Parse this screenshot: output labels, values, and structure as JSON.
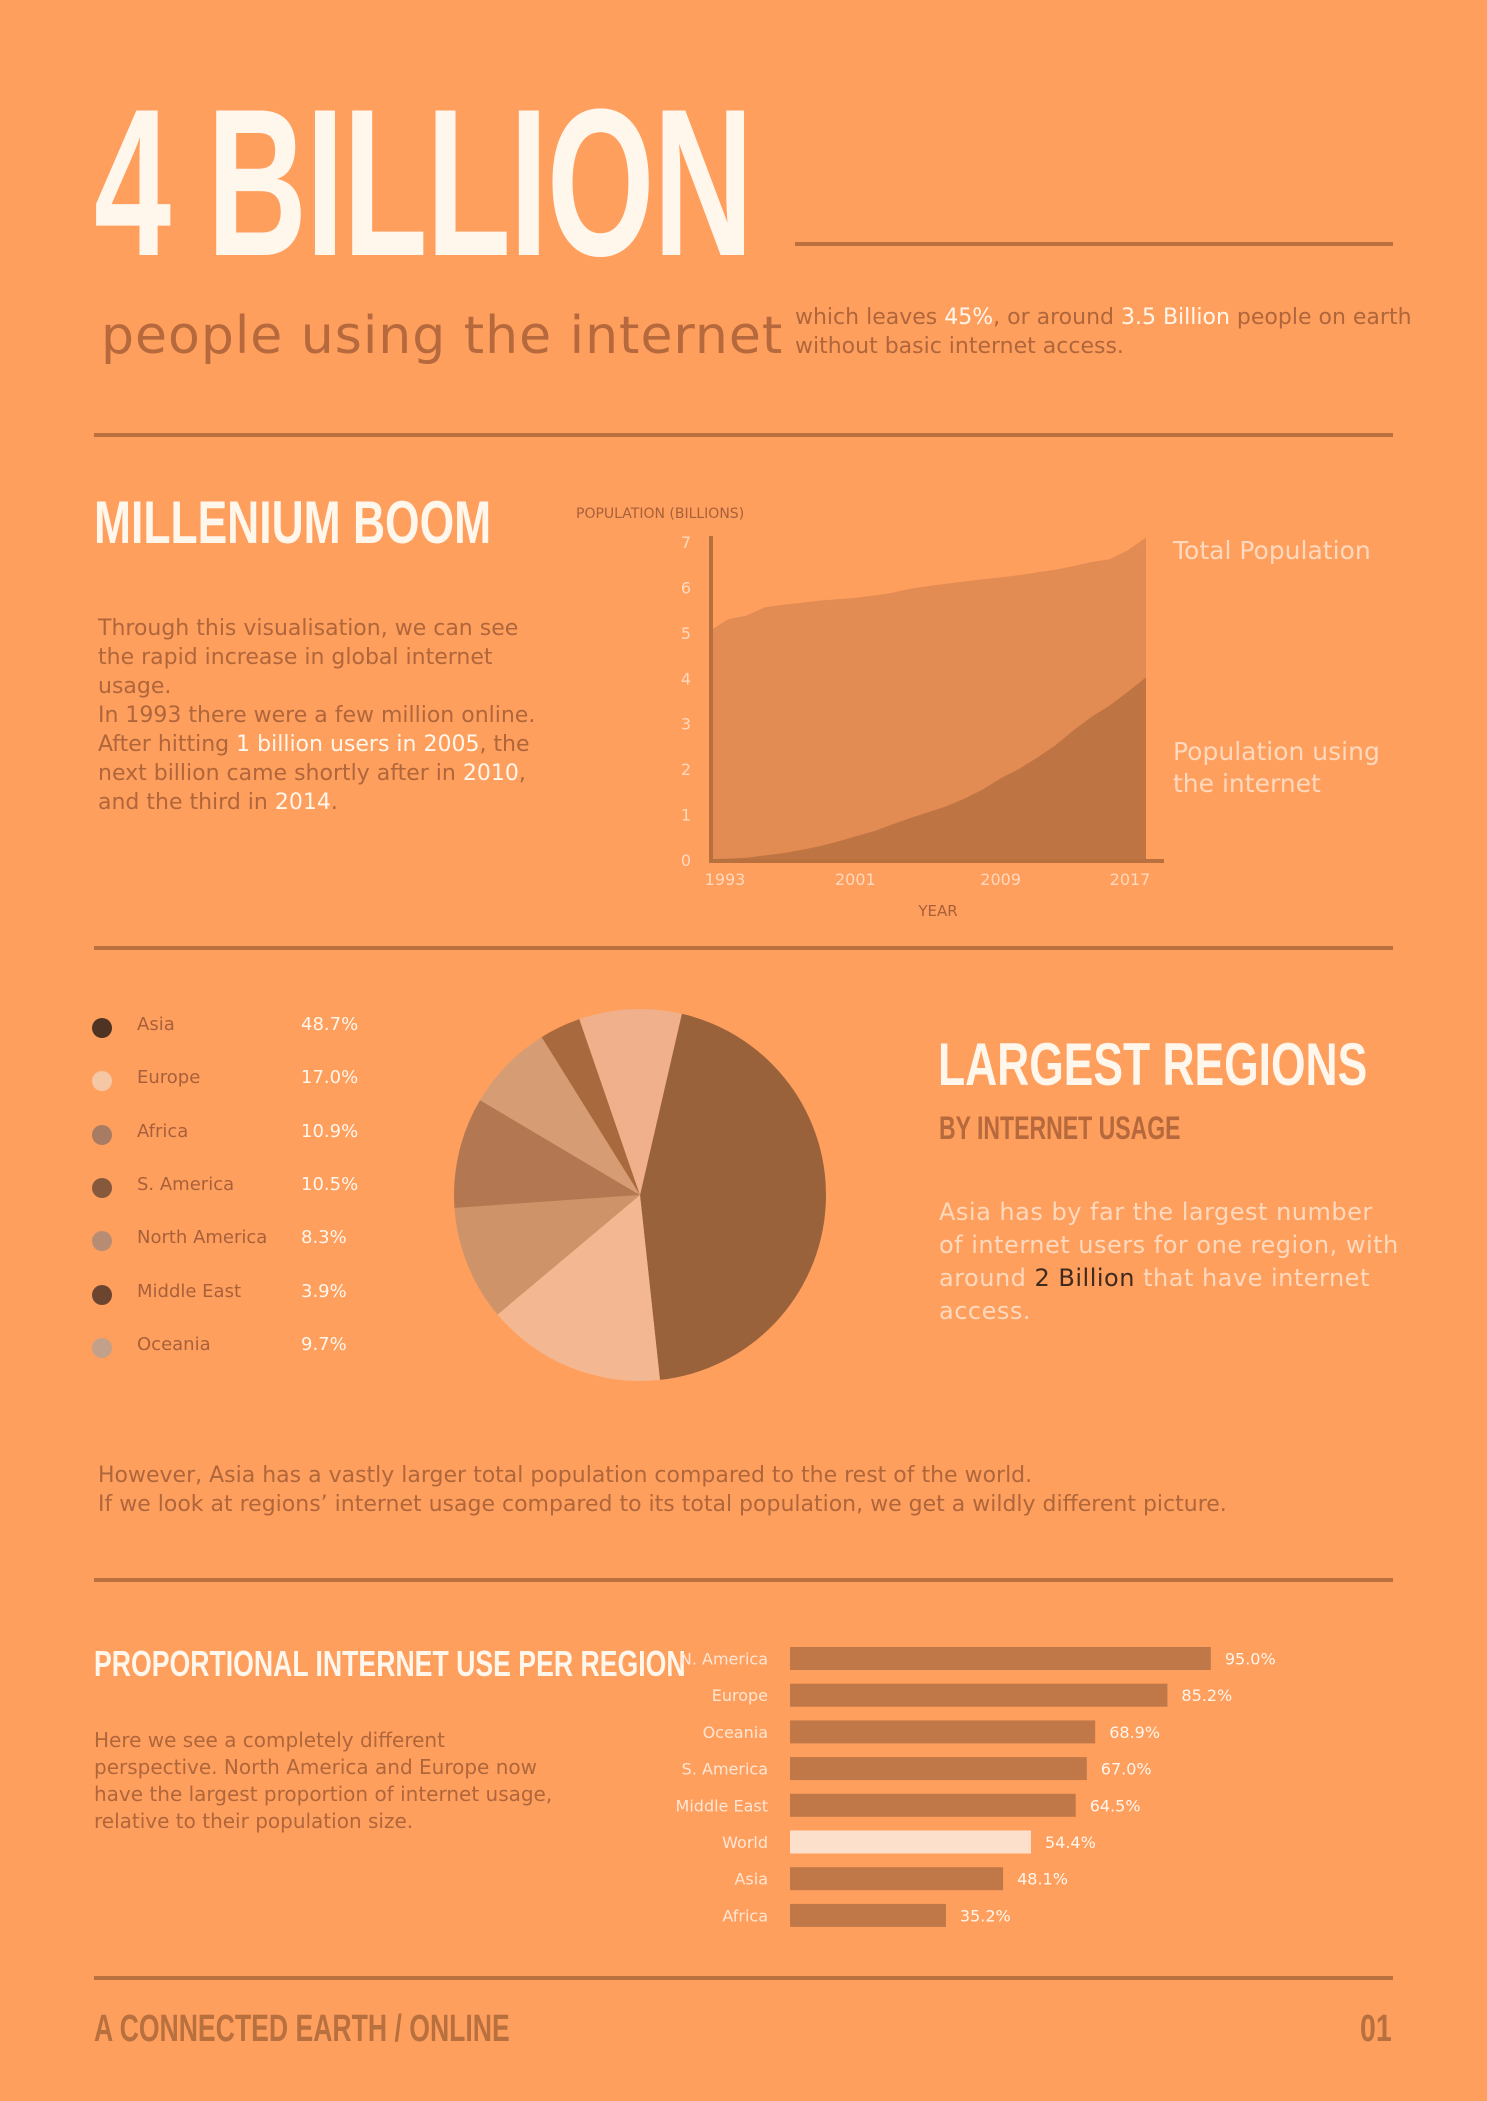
{
  "header": {
    "big_number": "4 BILLION",
    "subtitle": "people using the internet",
    "intro": {
      "part1": "which leaves ",
      "pct": "45%",
      "part2": ", or around ",
      "billion": "3.5 Billion",
      "part3": " people on earth without basic internet access."
    }
  },
  "boom": {
    "title": "MILLENIUM BOOM",
    "p1": "Through this visualisation, we can see the rapid increase in global internet usage.",
    "p2_a": "In 1993 there were a few million online. After hitting ",
    "p2_h1": "1 billion users in 2005",
    "p2_b": ", the next billion came shortly after in ",
    "p2_h2": "2010",
    "p2_c": ", and the third in ",
    "p2_h3": "2014",
    "p2_d": "."
  },
  "regions": {
    "title": "LARGEST REGIONS",
    "subtitle": "BY INTERNET USAGE",
    "text_a": "Asia has by far the largest number of internet users for one region, with around ",
    "text_h": "2 Billion",
    "text_b": " that have internet access."
  },
  "however": {
    "line1": "However, Asia has a vastly larger total population compared to the rest of the world.",
    "line2": "If we look at regions’ internet usage compared to its total population, we get a wildly different picture."
  },
  "proportional": {
    "title": "PROPORTIONAL INTERNET USE PER REGION",
    "text": "Here we see a completely different perspective.  North America and Europe now have the largest proportion of internet usage,  relative to their population size."
  },
  "footer": {
    "left": "A CONNECTED EARTH / ONLINE",
    "right": "01"
  },
  "colors": {
    "background": "#ff9f5e",
    "rule": "#b8703f",
    "total_population": "#e28c54",
    "internet_population": "#bf7443",
    "bar": "#c07848",
    "world_bar": "#fde0cc"
  },
  "chart_data": [
    {
      "type": "area",
      "ylabel": "POPULATION (BILLIONS)",
      "xlabel": "YEAR",
      "ylim": [
        0,
        7
      ],
      "yticks": [
        "0",
        "1",
        "2",
        "3",
        "4",
        "5",
        "6",
        "7"
      ],
      "xticks": [
        "1993",
        "2001",
        "2009",
        "2017"
      ],
      "x": [
        1993,
        1994,
        1995,
        1996,
        1997,
        1998,
        1999,
        2000,
        2001,
        2002,
        2003,
        2004,
        2005,
        2006,
        2007,
        2008,
        2009,
        2010,
        2011,
        2012,
        2013,
        2014,
        2015,
        2016,
        2017
      ],
      "series": [
        {
          "name": "Total Population",
          "values": [
            5.05,
            5.3,
            5.38,
            5.56,
            5.62,
            5.66,
            5.71,
            5.74,
            5.77,
            5.82,
            5.88,
            5.97,
            6.03,
            6.08,
            6.13,
            6.18,
            6.22,
            6.27,
            6.33,
            6.39,
            6.47,
            6.56,
            6.62,
            6.82,
            7.1
          ]
        },
        {
          "name": "Population using the internet",
          "values": [
            0.02,
            0.03,
            0.05,
            0.1,
            0.15,
            0.22,
            0.3,
            0.4,
            0.52,
            0.63,
            0.78,
            0.92,
            1.05,
            1.18,
            1.35,
            1.55,
            1.8,
            2.0,
            2.25,
            2.52,
            2.85,
            3.15,
            3.4,
            3.7,
            4.02
          ]
        }
      ],
      "grid": false
    },
    {
      "type": "pie",
      "categories": [
        "Asia",
        "Europe",
        "Africa",
        "S. America",
        "North America",
        "Middle East",
        "Oceania"
      ],
      "values": [
        48.7,
        17.0,
        10.9,
        10.5,
        8.3,
        3.9,
        9.7
      ],
      "labels": [
        "48.7%",
        "17.0%",
        "10.9%",
        "10.5%",
        "8.3%",
        "3.9%",
        "9.7%"
      ],
      "colors": [
        "#4f3424",
        "#f5c7a5",
        "#a87c62",
        "#86583c",
        "#b78c74",
        "#6c4530",
        "#c3a08a"
      ],
      "slice_colors": [
        "#99623a",
        "#f3b891",
        "#cf936a",
        "#b37851",
        "#d69d74",
        "#a9693f",
        "#efb08b"
      ]
    },
    {
      "type": "bar",
      "orientation": "horizontal",
      "categories": [
        "N. America",
        "Europe",
        "Oceania",
        "S. America",
        "Middle East",
        "World",
        "Asia",
        "Africa"
      ],
      "values": [
        95.0,
        85.2,
        68.9,
        67.0,
        64.5,
        54.4,
        48.1,
        35.2
      ],
      "labels": [
        "95.0%",
        "85.2%",
        "68.9%",
        "67.0%",
        "64.5%",
        "54.4%",
        "48.1%",
        "35.2%"
      ],
      "highlight": "World",
      "xlim": [
        0,
        100
      ]
    }
  ]
}
